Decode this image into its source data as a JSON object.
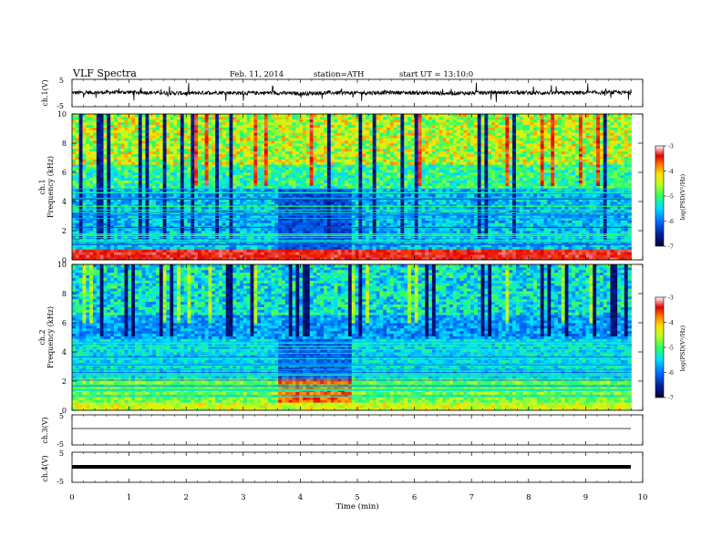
{
  "header": {
    "title": "VLF  Spectra",
    "date": "Feb. 11, 2014",
    "station": "station=ATH",
    "start": "start  UT  =   13:10:0"
  },
  "chart_data": [
    {
      "type": "line",
      "ylabel": "ch.1(V)",
      "ylim": [
        -5,
        5
      ],
      "yticks": [
        "5",
        "-5"
      ],
      "x": [
        0,
        0.5,
        1,
        1.5,
        2,
        2.5,
        3,
        3.5,
        4,
        4.5,
        5,
        5.5,
        6,
        6.5,
        7,
        7.5,
        8,
        8.5,
        9,
        9.5,
        9.8
      ],
      "values": [
        0.1,
        0.2,
        0.3,
        0.1,
        -0.1,
        0.2,
        0.0,
        0.1,
        -0.2,
        0.1,
        0.0,
        0.2,
        0.1,
        -0.1,
        0.0,
        0.2,
        0.1,
        0.0,
        0.1,
        0.2,
        0.1
      ]
    },
    {
      "type": "heatmap",
      "ylabel": "Frequency  (kHz)",
      "channel": "ch.1",
      "ylim": [
        0,
        10
      ],
      "yticks": [
        "0",
        "2",
        "4",
        "6",
        "8",
        "10"
      ],
      "colorbar": {
        "label": "log(PSD(V²/Hz)",
        "ticks": [
          "-3",
          "-4",
          "-5",
          "-6",
          "-7"
        ],
        "range": [
          -7,
          -3
        ]
      }
    },
    {
      "type": "heatmap",
      "ylabel": "Frequency  (kHz)",
      "channel": "ch.2",
      "ylim": [
        0,
        10
      ],
      "yticks": [
        "0",
        "2",
        "4",
        "6",
        "8",
        "10"
      ],
      "colorbar": {
        "label": "log(PSD(V²/Hz)",
        "ticks": [
          "-3",
          "-4",
          "-5",
          "-6",
          "-7"
        ],
        "range": [
          -7,
          -3
        ]
      }
    },
    {
      "type": "line",
      "ylabel": "ch.3(V)",
      "ylim": [
        -5,
        5
      ],
      "yticks": [
        "5",
        "-5"
      ],
      "x": [
        0,
        9.8
      ],
      "values": [
        0,
        0
      ]
    },
    {
      "type": "line",
      "ylabel": "ch.4(V)",
      "ylim": [
        -5,
        5
      ],
      "yticks": [
        "5",
        "-5"
      ],
      "x": [
        0,
        9.8
      ],
      "values": [
        0,
        0
      ]
    }
  ],
  "xaxis": {
    "label": "Time  (min)",
    "ticks": [
      "0",
      "1",
      "2",
      "3",
      "4",
      "5",
      "6",
      "7",
      "8",
      "9",
      "10"
    ],
    "xlim": [
      0,
      10
    ]
  }
}
